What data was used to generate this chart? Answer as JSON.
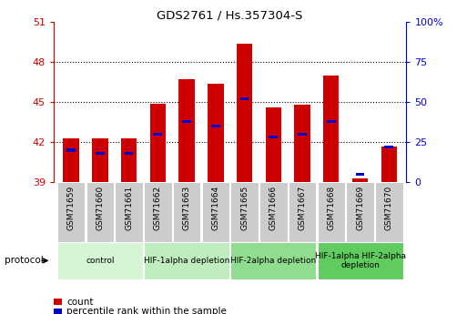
{
  "title": "GDS2761 / Hs.357304-S",
  "samples": [
    "GSM71659",
    "GSM71660",
    "GSM71661",
    "GSM71662",
    "GSM71663",
    "GSM71664",
    "GSM71665",
    "GSM71666",
    "GSM71667",
    "GSM71668",
    "GSM71669",
    "GSM71670"
  ],
  "count_values": [
    42.3,
    42.3,
    42.3,
    44.9,
    46.7,
    46.4,
    49.4,
    44.6,
    44.8,
    47.0,
    39.3,
    41.7
  ],
  "percentile_values": [
    20,
    18,
    18,
    30,
    38,
    35,
    52,
    28,
    30,
    38,
    5,
    22
  ],
  "y_min": 39,
  "y_max": 51,
  "y_ticks": [
    39,
    42,
    45,
    48,
    51
  ],
  "y2_ticks": [
    0,
    25,
    50,
    75,
    100
  ],
  "y2_tick_labels": [
    "0",
    "25",
    "50",
    "75",
    "100%"
  ],
  "bar_color": "#cc0000",
  "percentile_color": "#0000cc",
  "bar_width": 0.55,
  "group_colors": [
    "#d5f5d5",
    "#c0edc0",
    "#90dd90",
    "#60cc60"
  ],
  "group_labels": [
    "control",
    "HIF-1alpha depletion",
    "HIF-2alpha depletion",
    "HIF-1alpha HIF-2alpha\ndepletion"
  ],
  "group_ranges": [
    [
      0,
      2
    ],
    [
      3,
      5
    ],
    [
      6,
      8
    ],
    [
      9,
      11
    ]
  ],
  "protocol_label": "protocol",
  "legend_count_label": "count",
  "legend_percentile_label": "percentile rank within the sample",
  "tick_color_left": "#cc0000",
  "tick_color_right": "#0000cc",
  "sample_bg_color": "#cccccc",
  "sample_sep_color": "#ffffff"
}
